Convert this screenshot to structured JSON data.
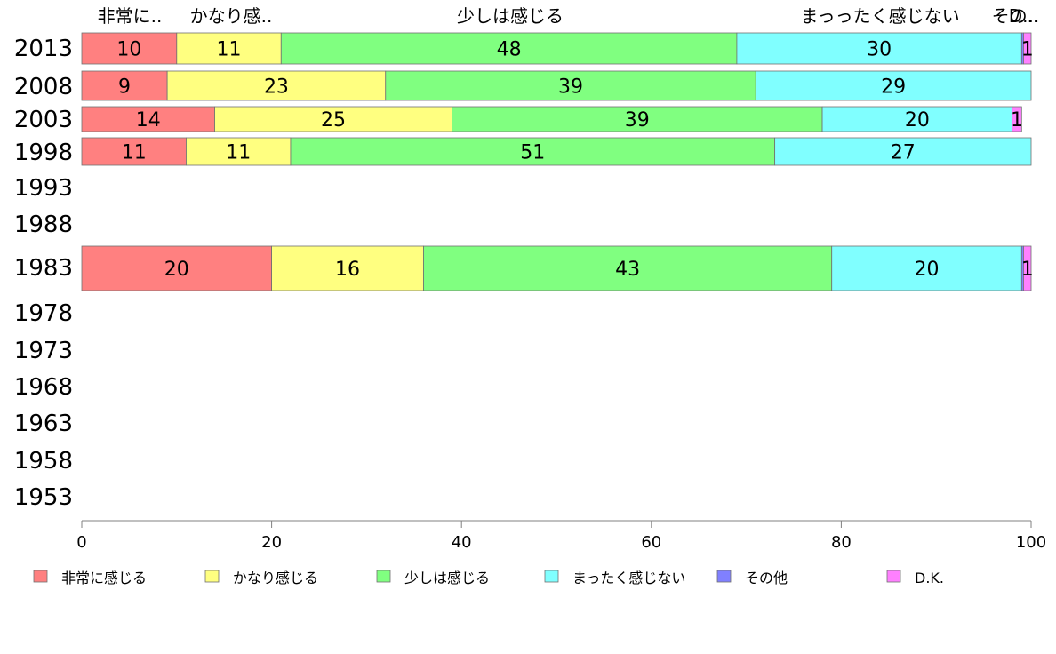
{
  "chart_data": {
    "type": "bar",
    "orientation": "horizontal",
    "stacked": true,
    "categories": [
      "2013",
      "2008",
      "2003",
      "1998",
      "1993",
      "1988",
      "1983",
      "1978",
      "1973",
      "1968",
      "1963",
      "1958",
      "1953"
    ],
    "top_labels": [
      "非常に..",
      "かなり感..",
      "少しは感じる",
      "まっったく感じない",
      "その..",
      "D..."
    ],
    "series": [
      {
        "name": "非常に感じる",
        "color": "#ff8080",
        "values": [
          10,
          9,
          14,
          11,
          null,
          null,
          20,
          null,
          null,
          null,
          null,
          null,
          null
        ]
      },
      {
        "name": "かなり感じる",
        "color": "#ffff80",
        "values": [
          11,
          23,
          25,
          11,
          null,
          null,
          16,
          null,
          null,
          null,
          null,
          null,
          null
        ]
      },
      {
        "name": "少しは感じる",
        "color": "#80ff80",
        "values": [
          48,
          39,
          39,
          51,
          null,
          null,
          43,
          null,
          null,
          null,
          null,
          null,
          null
        ]
      },
      {
        "name": "まったく感じない",
        "color": "#80ffff",
        "values": [
          30,
          29,
          20,
          27,
          null,
          null,
          20,
          null,
          null,
          null,
          null,
          null,
          null
        ]
      },
      {
        "name": "その他",
        "color": "#8080ff",
        "values": [
          0.2,
          0,
          0,
          0,
          null,
          null,
          0.2,
          null,
          null,
          null,
          null,
          null,
          null
        ]
      },
      {
        "name": "D.K.",
        "color": "#ff80ff",
        "values": [
          1,
          0,
          1,
          0,
          null,
          null,
          1,
          null,
          null,
          null,
          null,
          null,
          null
        ]
      }
    ],
    "xticks": [
      "0",
      "20",
      "40",
      "60",
      "80",
      "100"
    ],
    "xlim": [
      0,
      100
    ],
    "grid": false,
    "legend_position": "bottom"
  }
}
